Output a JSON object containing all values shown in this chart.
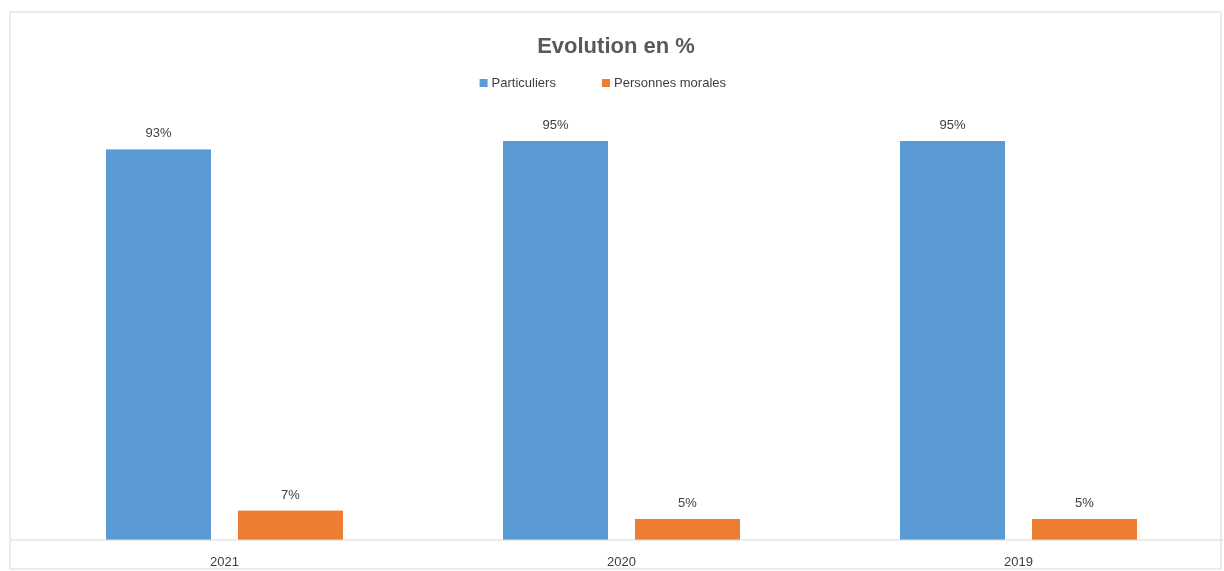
{
  "chart_data": {
    "type": "bar",
    "title": "Evolution en %",
    "categories": [
      "2021",
      "2020",
      "2019"
    ],
    "series": [
      {
        "name": "Particuliers",
        "color": "#5b9bd5",
        "values": [
          93,
          95,
          95
        ],
        "value_labels": [
          "93%",
          "95%",
          "95%"
        ]
      },
      {
        "name": "Personnes morales",
        "color": "#ed7d31",
        "values": [
          7,
          5,
          5
        ],
        "value_labels": [
          "7%",
          "5%",
          "5%"
        ]
      }
    ],
    "legend": "top"
  }
}
